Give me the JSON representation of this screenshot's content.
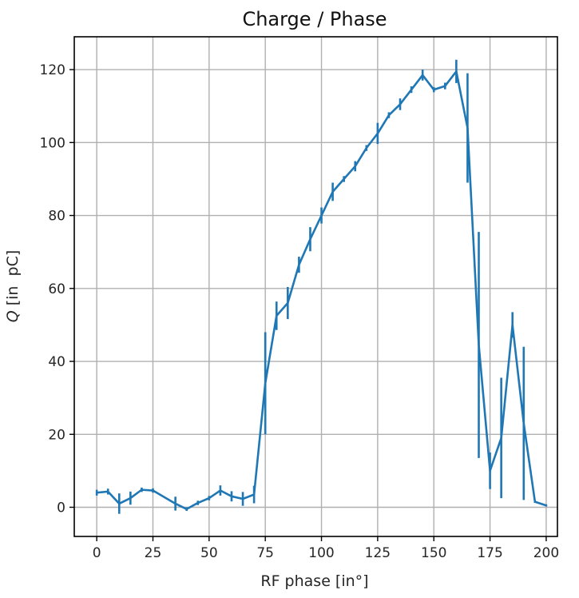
{
  "chart_data": {
    "type": "line",
    "title": "Charge / Phase",
    "xlabel": "RF phase [in°]",
    "ylabel": "Q  [in  pC]",
    "ylabel_symbol": "Q",
    "ylabel_units": "[in  pC]",
    "xlim": [
      -10,
      205
    ],
    "ylim": [
      -8,
      129
    ],
    "xticks": [
      0,
      25,
      50,
      75,
      100,
      125,
      150,
      175,
      200
    ],
    "yticks": [
      0,
      20,
      40,
      60,
      80,
      100,
      120
    ],
    "xtick_labels": [
      "0",
      "25",
      "50",
      "75",
      "100",
      "125",
      "150",
      "175",
      "200"
    ],
    "ytick_labels": [
      "0",
      "20",
      "40",
      "60",
      "80",
      "100",
      "120"
    ],
    "grid": true,
    "series": [
      {
        "color": "#1f77b4",
        "x": [
          0,
          5,
          10,
          15,
          20,
          25,
          35,
          40,
          45,
          50,
          55,
          60,
          65,
          70,
          75,
          80,
          85,
          90,
          95,
          100,
          105,
          110,
          115,
          120,
          125,
          130,
          135,
          140,
          145,
          150,
          155,
          160,
          165,
          170,
          175,
          180,
          185,
          190,
          195,
          200
        ],
        "y": [
          4,
          4.3,
          1,
          2.5,
          4.8,
          4.6,
          1,
          -0.5,
          1.2,
          2.5,
          4.6,
          3,
          2.3,
          3.5,
          34,
          52.5,
          56,
          66.5,
          73.5,
          80,
          86.5,
          90,
          93.5,
          98.5,
          102.5,
          107.5,
          110.5,
          114.5,
          118.5,
          114.5,
          115.5,
          119.5,
          104,
          44.5,
          10,
          19,
          50,
          23,
          1.5,
          0.5
        ],
        "yerr": [
          0.8,
          0.8,
          2.8,
          1.8,
          0.6,
          0.6,
          1.9,
          0.5,
          0.6,
          0.6,
          1.4,
          1.4,
          1.9,
          2.4,
          14,
          3.9,
          4.4,
          2.2,
          3.3,
          2.2,
          2.5,
          0.8,
          1.4,
          0.8,
          2.9,
          0.8,
          1.6,
          0.9,
          1.5,
          0.7,
          0.9,
          3.2,
          15,
          31,
          5,
          16.5,
          3.5,
          21,
          0.3,
          0.3
        ]
      }
    ]
  }
}
